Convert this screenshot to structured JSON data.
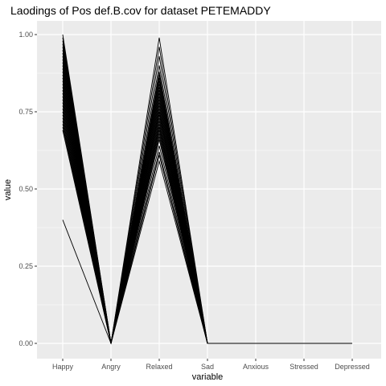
{
  "chart_data": {
    "type": "line",
    "title": "Laodings of Pos def.B.cov for dataset PETEMADDY",
    "xlabel": "variable",
    "ylabel": "value",
    "categories": [
      "Happy",
      "Angry",
      "Relaxed",
      "Sad",
      "Anxious",
      "Stressed",
      "Depressed"
    ],
    "ylim": [
      0,
      1
    ],
    "yticks": [
      0.0,
      0.25,
      0.5,
      0.75,
      1.0
    ],
    "ytick_labels": [
      "0.00",
      "0.25",
      "0.50",
      "0.75",
      "1.00"
    ],
    "grid": true,
    "legend": "none",
    "panel_background": "#ebebeb",
    "grid_color": "#ffffff",
    "line_color": "#000000",
    "series": [
      {
        "values": [
          1.0,
          0,
          0.75,
          0,
          0,
          0,
          0
        ]
      },
      {
        "values": [
          0.99,
          0,
          0.78,
          0,
          0,
          0,
          0
        ]
      },
      {
        "values": [
          0.98,
          0,
          0.99,
          0,
          0,
          0,
          0
        ]
      },
      {
        "values": [
          0.97,
          0,
          0.8,
          0,
          0,
          0,
          0
        ]
      },
      {
        "values": [
          0.96,
          0,
          0.96,
          0,
          0,
          0,
          0
        ]
      },
      {
        "values": [
          0.95,
          0,
          0.72,
          0,
          0,
          0,
          0
        ]
      },
      {
        "values": [
          0.94,
          0,
          0.82,
          0,
          0,
          0,
          0
        ]
      },
      {
        "values": [
          0.93,
          0,
          0.93,
          0,
          0,
          0,
          0
        ]
      },
      {
        "values": [
          0.92,
          0,
          0.7,
          0,
          0,
          0,
          0
        ]
      },
      {
        "values": [
          0.91,
          0,
          0.85,
          0,
          0,
          0,
          0
        ]
      },
      {
        "values": [
          0.9,
          0,
          0.9,
          0,
          0,
          0,
          0
        ]
      },
      {
        "values": [
          0.89,
          0,
          0.76,
          0,
          0,
          0,
          0
        ]
      },
      {
        "values": [
          0.88,
          0,
          0.68,
          0,
          0,
          0,
          0
        ]
      },
      {
        "values": [
          0.87,
          0,
          0.88,
          0,
          0,
          0,
          0
        ]
      },
      {
        "values": [
          0.86,
          0,
          0.74,
          0,
          0,
          0,
          0
        ]
      },
      {
        "values": [
          0.85,
          0,
          0.83,
          0,
          0,
          0,
          0
        ]
      },
      {
        "values": [
          0.84,
          0,
          0.66,
          0,
          0,
          0,
          0
        ]
      },
      {
        "values": [
          0.83,
          0,
          0.79,
          0,
          0,
          0,
          0
        ]
      },
      {
        "values": [
          0.82,
          0,
          0.71,
          0,
          0,
          0,
          0
        ]
      },
      {
        "values": [
          0.81,
          0,
          0.86,
          0,
          0,
          0,
          0
        ]
      },
      {
        "values": [
          0.8,
          0,
          0.73,
          0,
          0,
          0,
          0
        ]
      },
      {
        "values": [
          0.79,
          0,
          0.69,
          0,
          0,
          0,
          0
        ]
      },
      {
        "values": [
          0.78,
          0,
          0.81,
          0,
          0,
          0,
          0
        ]
      },
      {
        "values": [
          0.77,
          0,
          0.77,
          0,
          0,
          0,
          0
        ]
      },
      {
        "values": [
          0.76,
          0,
          0.64,
          0,
          0,
          0,
          0
        ]
      },
      {
        "values": [
          0.75,
          0,
          0.84,
          0,
          0,
          0,
          0
        ]
      },
      {
        "values": [
          0.74,
          0,
          0.62,
          0,
          0,
          0,
          0
        ]
      },
      {
        "values": [
          0.73,
          0,
          0.7,
          0,
          0,
          0,
          0
        ]
      },
      {
        "values": [
          0.72,
          0,
          0.75,
          0,
          0,
          0,
          0
        ]
      },
      {
        "values": [
          0.71,
          0,
          0.67,
          0,
          0,
          0,
          0
        ]
      },
      {
        "values": [
          0.7,
          0,
          0.61,
          0,
          0,
          0,
          0
        ]
      },
      {
        "values": [
          0.69,
          0,
          0.59,
          0,
          0,
          0,
          0
        ]
      },
      {
        "values": [
          0.4,
          0,
          0.87,
          0,
          0,
          0,
          0
        ]
      }
    ]
  }
}
